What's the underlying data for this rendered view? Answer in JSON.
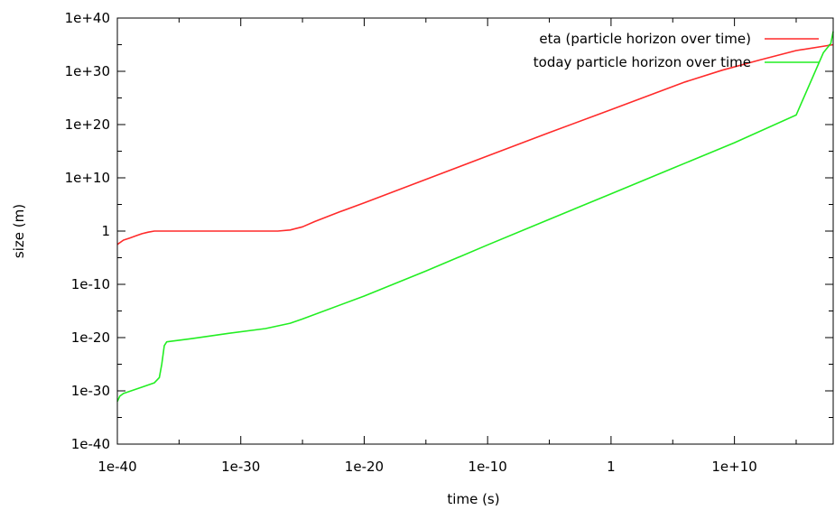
{
  "chart_data": {
    "type": "line",
    "title": "",
    "xlabel": "time (s)",
    "ylabel": "size (m)",
    "x_scale": "log",
    "y_scale": "log",
    "x_exp_range": [
      -40,
      18
    ],
    "y_exp_range": [
      -40,
      40
    ],
    "x_ticks": [
      {
        "exp": -40,
        "label": "1e-40"
      },
      {
        "exp": -30,
        "label": "1e-30"
      },
      {
        "exp": -20,
        "label": "1e-20"
      },
      {
        "exp": -10,
        "label": "1e-10"
      },
      {
        "exp": 0,
        "label": "1"
      },
      {
        "exp": 10,
        "label": "1e+10"
      }
    ],
    "y_ticks": [
      {
        "exp": 40,
        "label": "1e+40"
      },
      {
        "exp": 30,
        "label": "1e+30"
      },
      {
        "exp": 20,
        "label": "1e+20"
      },
      {
        "exp": 10,
        "label": "1e+10"
      },
      {
        "exp": 0,
        "label": "1"
      },
      {
        "exp": -10,
        "label": "1e-10"
      },
      {
        "exp": -20,
        "label": "1e-20"
      },
      {
        "exp": -30,
        "label": "1e-30"
      },
      {
        "exp": -40,
        "label": "1e-40"
      }
    ],
    "grid": false,
    "legend_position": "top-right",
    "series": [
      {
        "name": "eta (particle horizon over time)",
        "color": "#ff2a2a",
        "points_log10": [
          [
            -40,
            -2.5
          ],
          [
            -39.5,
            -1.7
          ],
          [
            -39,
            -1.3
          ],
          [
            -38.5,
            -0.9
          ],
          [
            -38,
            -0.5
          ],
          [
            -37.5,
            -0.2
          ],
          [
            -37,
            0
          ],
          [
            -35,
            0
          ],
          [
            -33,
            0
          ],
          [
            -31,
            0
          ],
          [
            -29,
            0
          ],
          [
            -27,
            0
          ],
          [
            -26,
            0.2
          ],
          [
            -25,
            0.8
          ],
          [
            -24,
            1.8
          ],
          [
            -22,
            3.6
          ],
          [
            -20,
            5.3
          ],
          [
            -15,
            9.7
          ],
          [
            -10,
            14.1
          ],
          [
            -5,
            18.5
          ],
          [
            0,
            22.8
          ],
          [
            3,
            25.4
          ],
          [
            6,
            28
          ],
          [
            9,
            30.2
          ],
          [
            12,
            32.1
          ],
          [
            15,
            33.9
          ],
          [
            18,
            35
          ]
        ]
      },
      {
        "name": "today particle horizon over time",
        "color": "#22ee22",
        "points_log10": [
          [
            -40,
            -32
          ],
          [
            -39.8,
            -31
          ],
          [
            -39.5,
            -30.5
          ],
          [
            -38,
            -29.3
          ],
          [
            -37,
            -28.5
          ],
          [
            -36.6,
            -27.5
          ],
          [
            -36.4,
            -25
          ],
          [
            -36.2,
            -21.5
          ],
          [
            -36,
            -20.8
          ],
          [
            -34,
            -20.2
          ],
          [
            -31,
            -19.2
          ],
          [
            -28,
            -18.3
          ],
          [
            -26,
            -17.3
          ],
          [
            -25,
            -16.5
          ],
          [
            -20,
            -12.2
          ],
          [
            -15,
            -7.5
          ],
          [
            -10,
            -2.6
          ],
          [
            -5,
            2.2
          ],
          [
            0,
            7
          ],
          [
            5,
            11.8
          ],
          [
            10,
            16.6
          ],
          [
            15,
            21.8
          ],
          [
            17.2,
            33.5
          ],
          [
            17.8,
            35.2
          ],
          [
            18,
            37.5
          ]
        ]
      }
    ]
  }
}
